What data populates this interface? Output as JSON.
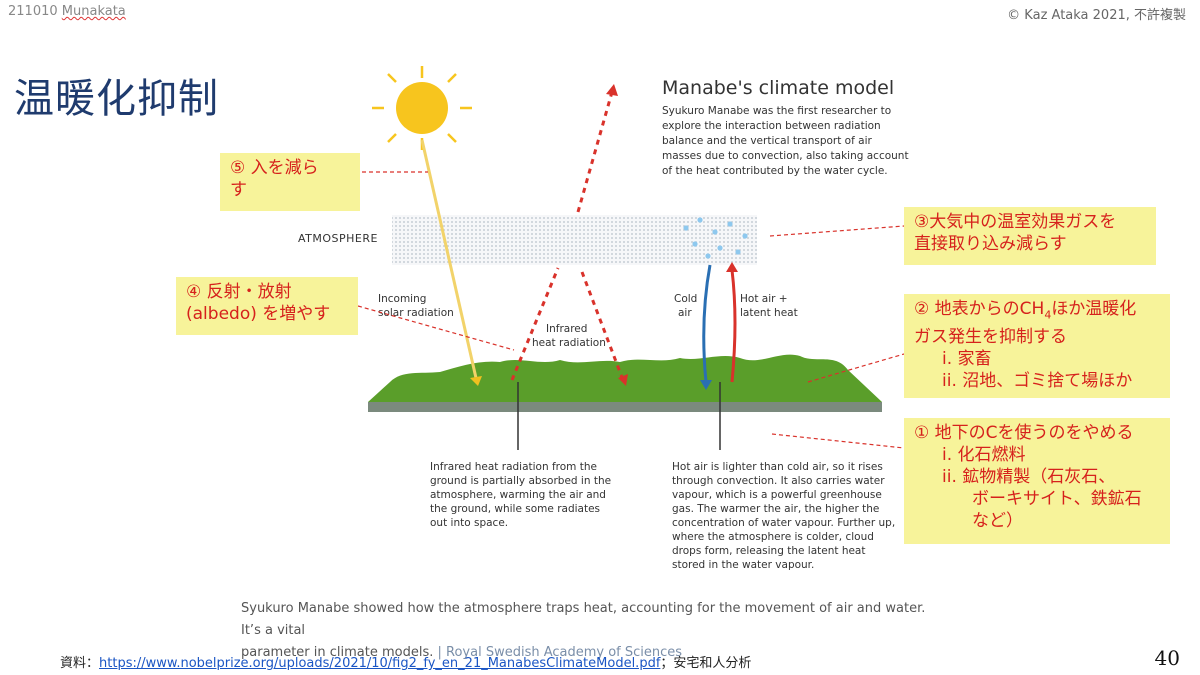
{
  "header": {
    "left_code": "211010",
    "left_name": "Munakata",
    "right": "© Kaz Ataka 2021, 不許複製"
  },
  "title": "温暖化抑制",
  "diagram": {
    "title": "Manabe's climate model",
    "intro": [
      "Syukuro Manabe was the first researcher to",
      "explore the interaction between radiation",
      "balance and the vertical transport of air",
      "masses due to convection, also taking account",
      "of the heat contributed by the water cycle."
    ],
    "atmosphere_label": "ATMOSPHERE",
    "incoming": [
      "Incoming",
      "solar radiation"
    ],
    "infrared": [
      "Infrared",
      "heat radiation"
    ],
    "cold_air": [
      "Cold",
      "air"
    ],
    "hot_air": [
      "Hot air +",
      "latent heat"
    ],
    "desc_left": [
      "Infrared heat radiation from the",
      "ground is partially absorbed in the",
      "atmosphere, warming the air and",
      "the ground, while some radiates",
      "out into space."
    ],
    "desc_right": [
      "Hot air is lighter than cold air, so it rises",
      "through convection. It also carries water",
      "vapour, which is a powerful greenhouse",
      "gas. The warmer the air, the higher the",
      "concentration of water vapour. Further up,",
      "where the atmosphere is colder, cloud",
      "drops form, releasing the latent heat",
      "stored in the water vapour."
    ]
  },
  "notes": {
    "n5": [
      "⑤ 入を減ら",
      "す"
    ],
    "n4": [
      "④ 反射・放射",
      "(albedo) を増やす"
    ],
    "n3": [
      "③大気中の温室効果ガスを",
      "直接取り込み減らす"
    ],
    "n2": {
      "line1_pre": "② 地表からのCH",
      "line1_sub": "4",
      "line1_post": "ほか温暖化",
      "line2": "ガス発生を抑制する",
      "item1": "i.  家畜",
      "item2": "ii. 沼地、ゴミ捨て場ほか"
    },
    "n1": {
      "line1": "① 地下のCを使うのをやめる",
      "item1": "i.  化石燃料",
      "item2": "ii. 鉱物精製（石灰石、",
      "item3": "ボーキサイト、鉄鉱石",
      "item4": "など）"
    }
  },
  "caption": {
    "line1": "Syukuro Manabe showed how the atmosphere traps heat, accounting for the movement of air and water. It’s a vital",
    "line2": "parameter in climate models.",
    "source": "| Royal Swedish Academy of Sciences"
  },
  "footer": {
    "prefix": "資料：",
    "link": "https://www.nobelprize.org/uploads/2021/10/fig2_fy_en_21_ManabesClimateModel.pdf",
    "suffix": "；安宅和人分析"
  },
  "page_number": "40",
  "colors": {
    "title": "#1f3b6e",
    "note_bg": "#f7f39a",
    "note_text": "#d6211c",
    "arrow_red": "#d9322b",
    "ground": "#5a9e2a",
    "sun": "#f7c51e"
  }
}
